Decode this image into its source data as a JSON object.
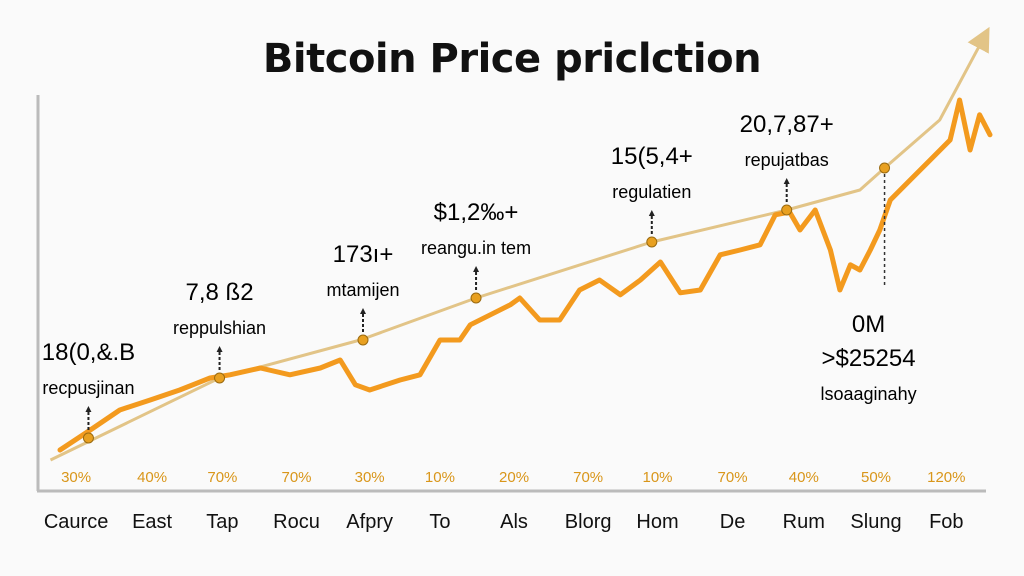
{
  "chart_data": {
    "type": "line",
    "title": "Bitcoin Price priclction",
    "xlabel": "",
    "ylabel": "",
    "xlim": [
      0,
      100
    ],
    "ylim": [
      0,
      122.5
    ],
    "grid": false,
    "categories": [
      "Caurce",
      "East",
      "Tap",
      "Rocu",
      "Afpry",
      "To",
      "Als",
      "Blorg",
      "Hom",
      "De",
      "Rum",
      "Slung",
      "Fob"
    ],
    "category_x": [
      3.8,
      11.8,
      19.2,
      27,
      34.7,
      42.1,
      49.9,
      57.7,
      65,
      72.9,
      80.4,
      88,
      95.4
    ],
    "percent_labels": [
      "30%",
      "40%",
      "70%",
      "70%",
      "30%",
      "10%",
      "20%",
      "70%",
      "10%",
      "70%",
      "40%",
      "50%",
      "120%"
    ],
    "series": [
      {
        "name": "price",
        "color": "#f39a1e",
        "points": [
          [
            2.1,
            10
          ],
          [
            5.3,
            15
          ],
          [
            8.4,
            20
          ],
          [
            11.6,
            22.5
          ],
          [
            14.7,
            25
          ],
          [
            17.9,
            28
          ],
          [
            20,
            28.8
          ],
          [
            23.2,
            30.5
          ],
          [
            26.3,
            28.8
          ],
          [
            29.5,
            30.5
          ],
          [
            31.6,
            32.5
          ],
          [
            33.2,
            26.3
          ],
          [
            34.7,
            25
          ],
          [
            37.9,
            27.5
          ],
          [
            40,
            28.8
          ],
          [
            42.1,
            37.5
          ],
          [
            44.2,
            37.5
          ],
          [
            45.3,
            41.3
          ],
          [
            47.4,
            43.8
          ],
          [
            49.5,
            46.3
          ],
          [
            50.5,
            48
          ],
          [
            52.6,
            42.5
          ],
          [
            54.7,
            42.5
          ],
          [
            56.8,
            50
          ],
          [
            58.9,
            52.5
          ],
          [
            61.1,
            48.8
          ],
          [
            63.2,
            52.5
          ],
          [
            65.3,
            57
          ],
          [
            67.4,
            49.3
          ],
          [
            69.5,
            50
          ],
          [
            71.6,
            58.8
          ],
          [
            73.7,
            60
          ],
          [
            75.8,
            61.3
          ],
          [
            77.4,
            68.8
          ],
          [
            78.9,
            69.5
          ],
          [
            80,
            65
          ],
          [
            81.6,
            70
          ],
          [
            83.2,
            60
          ],
          [
            84.2,
            50
          ],
          [
            85.3,
            56.3
          ],
          [
            86.3,
            55
          ],
          [
            87.4,
            60
          ],
          [
            88.4,
            65
          ],
          [
            89.5,
            72.5
          ],
          [
            91.6,
            77.5
          ],
          [
            93.7,
            82.5
          ],
          [
            95.8,
            87.5
          ],
          [
            96.8,
            97.5
          ],
          [
            97.9,
            85
          ],
          [
            98.9,
            93.8
          ],
          [
            100,
            88.8
          ]
        ]
      },
      {
        "name": "trend",
        "color": "#e2c487",
        "points": [
          [
            1.1,
            7.5
          ],
          [
            18.9,
            28
          ],
          [
            33.7,
            37.5
          ],
          [
            45.9,
            48
          ],
          [
            64.4,
            62
          ],
          [
            78.6,
            70
          ],
          [
            86.3,
            75
          ],
          [
            88.9,
            80.5
          ],
          [
            94.7,
            92.5
          ],
          [
            99.5,
            113.8
          ]
        ]
      }
    ],
    "annotations": [
      {
        "x": 5.1,
        "y": 13,
        "value": "18(0,&.B",
        "label": "recpusjinan",
        "place": "above"
      },
      {
        "x": 18.9,
        "y": 28,
        "value": "7,8 ß2",
        "label": "reppulshian",
        "place": "above"
      },
      {
        "x": 34,
        "y": 37.5,
        "value": "173ı+",
        "label": "mtamijen",
        "place": "above"
      },
      {
        "x": 45.9,
        "y": 48,
        "value": "$1,2‰+",
        "label": "reangu.in tem",
        "place": "above"
      },
      {
        "x": 64.4,
        "y": 62,
        "value": "15(5,4+",
        "label": "regulatien",
        "place": "above"
      },
      {
        "x": 78.6,
        "y": 70,
        "value": "20,7,87+",
        "label": "repujatbas",
        "place": "above"
      },
      {
        "x": 88.9,
        "y": 80.5,
        "value": "0M\n>$25254",
        "label": "lsoaaginahy",
        "place": "below"
      }
    ],
    "colors": {
      "marker": "#e8a020",
      "marker_stroke": "#9a6a10",
      "axis": "#bbbbbb",
      "percent": "#d9961a"
    }
  }
}
